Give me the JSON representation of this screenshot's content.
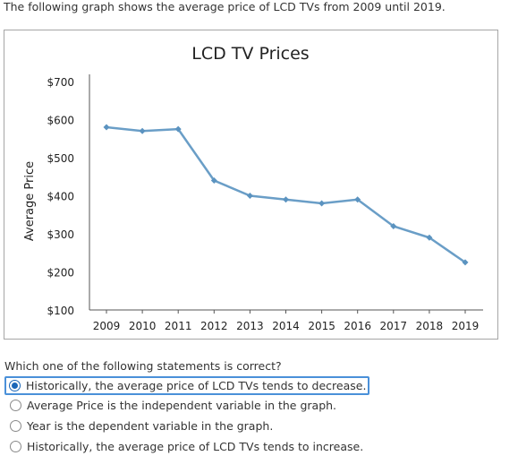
{
  "intro_text": "The following graph shows the average price of LCD TVs from 2009 until 2019.",
  "question": "Which one of the following statements is correct?",
  "options": [
    {
      "label": "Historically, the average price of LCD TVs tends to decrease.",
      "selected": true
    },
    {
      "label": "Average Price is the independent variable in the graph.",
      "selected": false
    },
    {
      "label": "Year is the dependent variable in the graph.",
      "selected": false
    },
    {
      "label": "Historically, the average price of LCD TVs tends to increase.",
      "selected": false
    }
  ],
  "colors": {
    "line": "#6a9ec7",
    "marker": "#5b93c0",
    "selected_border": "#4a90d9",
    "radio_fill": "#1a66b8"
  },
  "chart_data": {
    "type": "line",
    "title": "LCD TV Prices",
    "ylabel": "Average Price",
    "xlabel": "",
    "x": [
      "2009",
      "2010",
      "2011",
      "2012",
      "2013",
      "2014",
      "2015",
      "2016",
      "2017",
      "2018",
      "2019"
    ],
    "series": [
      {
        "values": [
          580,
          570,
          575,
          440,
          400,
          390,
          380,
          390,
          320,
          290,
          225
        ]
      }
    ],
    "y_ticks": [
      "$700",
      "$600",
      "$500",
      "$400",
      "$300",
      "$200",
      "$100"
    ],
    "ylim": [
      100,
      700
    ],
    "grid": false,
    "legend": "none"
  }
}
